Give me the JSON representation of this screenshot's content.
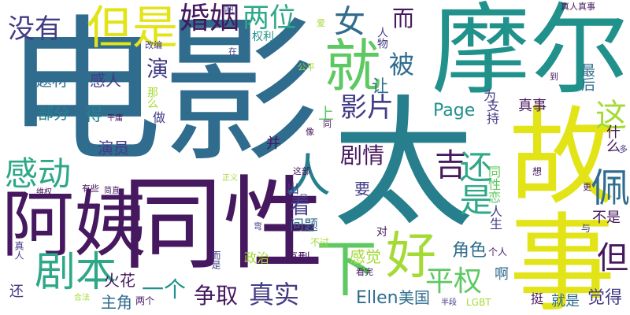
{
  "palette": {
    "purple": "#46185f",
    "indigo": "#433c86",
    "blue": "#2f6c8e",
    "teal": "#277f8e",
    "green": "#21918c",
    "jade": "#2ea887",
    "lime": "#5ec962",
    "olive": "#a5da35",
    "yellow": "#e2e418"
  },
  "words": [
    "电影",
    "太",
    "故事",
    "摩尔",
    "同性",
    "阿姨",
    "好",
    "就",
    "但是",
    "下",
    "剧本",
    "感动",
    "婚姻",
    "人",
    "女",
    "这",
    "佩",
    "平权",
    "吉",
    "但",
    "两位",
    "没有",
    "影片",
    "还是",
    "被",
    "剧情",
    "演",
    "争取",
    "真实",
    "看",
    "Ellen",
    "一个",
    "Page",
    "感人",
    "题材",
    "部分",
    "得",
    "演员",
    "问题",
    "觉得",
    "角色",
    "火花",
    "主角",
    "美国",
    "感觉",
    "政治",
    "要",
    "让",
    "而",
    "就是",
    "挺",
    "真事",
    "什么",
    "不是",
    "同性恋",
    "人生",
    "啊",
    "支持",
    "最后",
    "为",
    "做",
    "上",
    "并",
    "原型",
    "真人真事",
    "权利",
    "人物",
    "爱",
    "吧",
    "公平",
    "改编",
    "平庸",
    "那么",
    "出",
    "像",
    "同",
    "这部",
    "只",
    "正义",
    "想",
    "更",
    "多",
    "与",
    "到",
    "不过",
    "个人",
    "看完",
    "真人",
    "还",
    "两个",
    "合法",
    "半段",
    "LGBT",
    "维权",
    "有些",
    "简直",
    "而是",
    "弯",
    "对",
    "在"
  ]
}
